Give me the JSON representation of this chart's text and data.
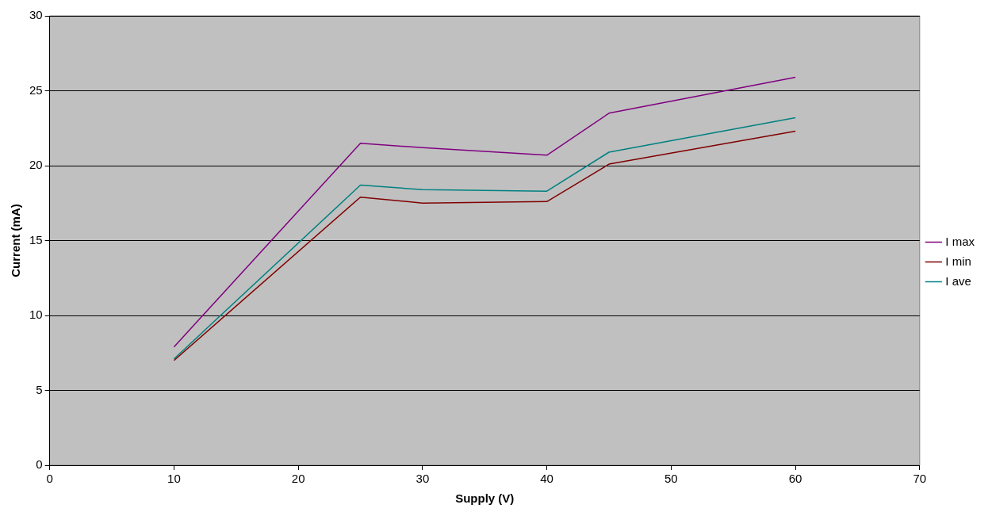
{
  "chart_data": {
    "type": "line",
    "xlabel": "Supply (V)",
    "ylabel": "Current (mA)",
    "x": [
      10,
      25,
      30,
      40,
      45,
      60
    ],
    "series": [
      {
        "name": "I max",
        "color": "#800080",
        "values": [
          7.9,
          21.5,
          21.2,
          20.7,
          23.5,
          25.9
        ]
      },
      {
        "name": "I min",
        "color": "#800000",
        "values": [
          7.0,
          17.9,
          17.5,
          17.6,
          20.1,
          22.3
        ]
      },
      {
        "name": "I ave",
        "color": "#008080",
        "values": [
          7.1,
          18.7,
          18.4,
          18.3,
          20.9,
          23.2
        ]
      }
    ],
    "xlim": [
      0,
      70
    ],
    "xticks": [
      0,
      10,
      20,
      30,
      40,
      50,
      60,
      70
    ],
    "ylim": [
      0,
      30
    ],
    "yticks": [
      0,
      5,
      10,
      15,
      20,
      25,
      30
    ],
    "grid": "y",
    "legend": "right",
    "marker": "none",
    "line_style": "solid"
  }
}
